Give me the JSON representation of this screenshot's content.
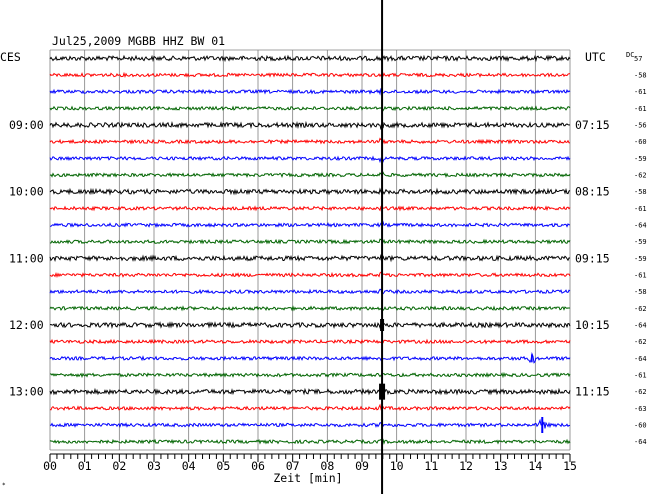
{
  "chart_data": {
    "type": "line",
    "title": "Jul25,2009   MGBB HHZ BW 01",
    "left_axis_label": "CES",
    "right_axis_label": "UTC",
    "right_corner_label": "DC",
    "xlabel": "Zeit [min]",
    "x_ticks": [
      "00",
      "01",
      "02",
      "03",
      "04",
      "05",
      "06",
      "07",
      "08",
      "09",
      "10",
      "11",
      "12",
      "13",
      "14",
      "15"
    ],
    "x_range": [
      0,
      15
    ],
    "grid": true,
    "line_colors": [
      "#000000",
      "#ff0000",
      "#0000ff",
      "#006400"
    ],
    "hour_labels_left": [
      {
        "row": 4,
        "text": "09:00"
      },
      {
        "row": 8,
        "text": "10:00"
      },
      {
        "row": 12,
        "text": "11:00"
      },
      {
        "row": 16,
        "text": "12:00"
      },
      {
        "row": 20,
        "text": "13:00"
      }
    ],
    "hour_labels_right": [
      {
        "row": 4,
        "text": "07:15"
      },
      {
        "row": 8,
        "text": "08:15"
      },
      {
        "row": 12,
        "text": "09:15"
      },
      {
        "row": 16,
        "text": "10:15"
      },
      {
        "row": 20,
        "text": "11:15"
      }
    ],
    "dc_offsets": [
      "57",
      "-58",
      "-61",
      "-61",
      "-56",
      "-60",
      "-59",
      "-62",
      "-58",
      "-61",
      "-64",
      "-59",
      "-59",
      "-61",
      "-58",
      "-62",
      "-64",
      "-62",
      "-64",
      "-61",
      "-62",
      "-63",
      "-60",
      "-64"
    ],
    "events": [
      {
        "x_min": 9.55,
        "description": "large vertical spike crossing all traces"
      },
      {
        "row": 22,
        "x_min": 14.2,
        "description": "small local event"
      },
      {
        "row": 18,
        "x_min": 13.9,
        "description": "small local event"
      }
    ]
  }
}
